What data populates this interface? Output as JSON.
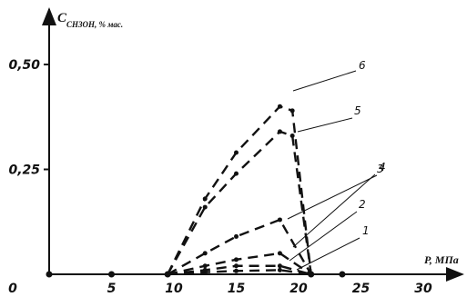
{
  "chart_data": {
    "type": "line",
    "xlabel": "P, МПа",
    "ylabel_main": "C",
    "ylabel_sub": "CH3OH, % мас.",
    "xlim": [
      0,
      31
    ],
    "ylim": [
      0,
      0.55
    ],
    "x_ticks": [
      "0",
      "5",
      "10",
      "15",
      "20",
      "25",
      "30"
    ],
    "y_ticks": [
      "0,25",
      "0,50"
    ],
    "baseline_points": {
      "x": [
        0,
        5,
        9.5,
        21,
        23.5
      ],
      "y": [
        0,
        0,
        0,
        0,
        0
      ]
    },
    "series": [
      {
        "name": "1",
        "x": [
          9.5,
          12.5,
          15,
          18.5,
          21
        ],
        "y": [
          0.0,
          0.005,
          0.008,
          0.01,
          0.0
        ]
      },
      {
        "name": "2",
        "x": [
          9.5,
          12.5,
          15,
          18.5,
          21
        ],
        "y": [
          0.0,
          0.01,
          0.02,
          0.02,
          0.0
        ]
      },
      {
        "name": "3",
        "x": [
          9.5,
          12.5,
          15,
          18.5,
          21
        ],
        "y": [
          0.0,
          0.02,
          0.035,
          0.05,
          0.0
        ]
      },
      {
        "name": "4",
        "x": [
          9.5,
          12.5,
          15,
          18.5,
          21
        ],
        "y": [
          0.0,
          0.05,
          0.09,
          0.13,
          0.0
        ]
      },
      {
        "name": "5",
        "x": [
          9.5,
          12.5,
          15,
          18.5,
          19.5,
          21
        ],
        "y": [
          0.0,
          0.16,
          0.24,
          0.34,
          0.33,
          0.0
        ]
      },
      {
        "name": "6",
        "x": [
          9.5,
          12.5,
          15,
          18.5,
          19.5,
          21
        ],
        "y": [
          0.0,
          0.18,
          0.29,
          0.4,
          0.39,
          0.0
        ]
      }
    ]
  }
}
